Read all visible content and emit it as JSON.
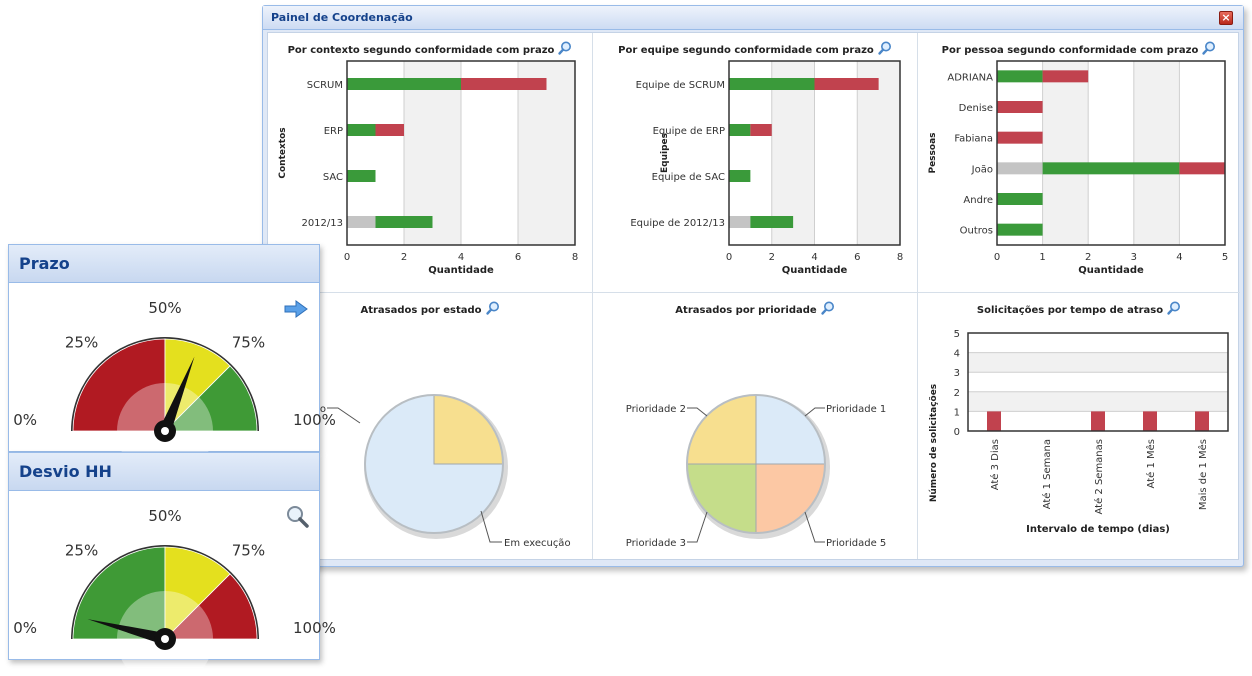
{
  "panel": {
    "title": "Painel de Coordenação",
    "close_label": "×"
  },
  "colors": {
    "green": "#3a9a3a",
    "red": "#c1424e",
    "gray": "#c4c4c4",
    "frame_bg": "#f1f1f1"
  },
  "charts": {
    "contexto": {
      "title": "Por contexto segundo conformidade com prazo",
      "ylabel": "Contextos",
      "xlabel": "Quantidade",
      "xticks": [
        "0",
        "2",
        "4",
        "6",
        "8"
      ],
      "categories": [
        "SCRUM",
        "ERP",
        "SAC",
        "2012/13"
      ]
    },
    "equipe": {
      "title": "Por equipe segundo conformidade com prazo",
      "ylabel": "Equipes",
      "xlabel": "Quantidade",
      "xticks": [
        "0",
        "2",
        "4",
        "6",
        "8"
      ],
      "categories": [
        "Equipe de SCRUM",
        "Equipe de ERP",
        "Equipe de SAC",
        "Equipe de 2012/13"
      ]
    },
    "pessoa": {
      "title": "Por pessoa segundo conformidade com prazo",
      "ylabel": "Pessoas",
      "xlabel": "Quantidade",
      "xticks": [
        "0",
        "1",
        "2",
        "3",
        "4",
        "5"
      ],
      "categories": [
        "ADRIANA",
        "Denise",
        "Fabiana",
        "João",
        "Andre",
        "Outros"
      ]
    },
    "estado": {
      "title": "Atrasados por estado",
      "labels": [
        "Em execução",
        "Em execução"
      ]
    },
    "prioridade": {
      "title": "Atrasados por prioridade",
      "labels": [
        "Prioridade 1",
        "Prioridade 2",
        "Prioridade 3",
        "Prioridade 5"
      ]
    },
    "tempo": {
      "title": "Solicitações por tempo de atraso",
      "ylabel": "Número de solicitações",
      "xlabel": "Intervalo de tempo (dias)",
      "yticks": [
        "0",
        "1",
        "2",
        "3",
        "4",
        "5"
      ],
      "categories": [
        "Até 3 Dias",
        "Até 1 Semana",
        "Até 2 Semanas",
        "Até 1 Mês",
        "Mais de 1 Mês"
      ]
    }
  },
  "chart_data": [
    {
      "type": "bar",
      "title": "Por contexto segundo conformidade com prazo",
      "xlabel": "Quantidade",
      "ylabel": "Contextos",
      "orientation": "horizontal",
      "stacked": true,
      "categories": [
        "SCRUM",
        "ERP",
        "SAC",
        "2012/13"
      ],
      "series": [
        {
          "values": [
            0,
            0,
            0,
            1
          ],
          "color": "#c4c4c4"
        },
        {
          "values": [
            4,
            1,
            1,
            2
          ],
          "color": "#3a9a3a"
        },
        {
          "values": [
            3,
            1,
            0,
            0
          ],
          "color": "#c1424e"
        }
      ],
      "xlim": [
        0,
        8
      ]
    },
    {
      "type": "bar",
      "title": "Por equipe segundo conformidade com prazo",
      "xlabel": "Quantidade",
      "ylabel": "Equipes",
      "orientation": "horizontal",
      "stacked": true,
      "categories": [
        "Equipe de SCRUM",
        "Equipe de ERP",
        "Equipe de SAC",
        "Equipe de 2012/13"
      ],
      "series": [
        {
          "values": [
            0,
            0,
            0,
            1
          ],
          "color": "#c4c4c4"
        },
        {
          "values": [
            4,
            1,
            1,
            2
          ],
          "color": "#3a9a3a"
        },
        {
          "values": [
            3,
            1,
            0,
            0
          ],
          "color": "#c1424e"
        }
      ],
      "xlim": [
        0,
        8
      ]
    },
    {
      "type": "bar",
      "title": "Por pessoa segundo conformidade com prazo",
      "xlabel": "Quantidade",
      "ylabel": "Pessoas",
      "orientation": "horizontal",
      "stacked": true,
      "categories": [
        "ADRIANA",
        "Denise",
        "Fabiana",
        "João",
        "Andre",
        "Outros"
      ],
      "series": [
        {
          "values": [
            0,
            0,
            0,
            1,
            0,
            0
          ],
          "color": "#c4c4c4"
        },
        {
          "values": [
            1,
            0,
            0,
            3,
            1,
            1
          ],
          "color": "#3a9a3a"
        },
        {
          "values": [
            1,
            1,
            1,
            1,
            0,
            0
          ],
          "color": "#c1424e"
        }
      ],
      "xlim": [
        0,
        5
      ]
    },
    {
      "type": "pie",
      "title": "Atrasados por estado",
      "labels": [
        "Em execução",
        "Em execução"
      ],
      "values": [
        3,
        1
      ],
      "colors": [
        "#dbeaf8",
        "#f7df8f"
      ]
    },
    {
      "type": "pie",
      "title": "Atrasados por prioridade",
      "labels": [
        "Prioridade 1",
        "Prioridade 5",
        "Prioridade 3",
        "Prioridade 2"
      ],
      "values": [
        1,
        1,
        1,
        1
      ],
      "colors": [
        "#dbeaf8",
        "#fcc8a4",
        "#c5dd8a",
        "#f7df8f"
      ]
    },
    {
      "type": "bar",
      "title": "Solicitações por tempo de atraso",
      "xlabel": "Intervalo de tempo (dias)",
      "ylabel": "Número de solicitações",
      "categories": [
        "Até 3 Dias",
        "Até 1 Semana",
        "Até 2 Semanas",
        "Até 1 Mês",
        "Mais de 1 Mês"
      ],
      "values": [
        1,
        0,
        1,
        1,
        1
      ],
      "ylim": [
        0,
        5
      ]
    }
  ],
  "gauges": [
    {
      "key": "prazo",
      "title": "Prazo",
      "labels": [
        "0%",
        "25%",
        "50%",
        "75%",
        "100%"
      ],
      "value_pct": 62,
      "action_icon": "arrow-right-icon",
      "zones": [
        {
          "from": 0,
          "to": 50,
          "color": "#b11a22"
        },
        {
          "from": 50,
          "to": 75,
          "color": "#e4e01e"
        },
        {
          "from": 75,
          "to": 100,
          "color": "#3f9a36"
        }
      ]
    },
    {
      "key": "desvio",
      "title": "Desvio HH",
      "labels": [
        "0%",
        "25%",
        "50%",
        "75%",
        "100%"
      ],
      "value_pct": 8,
      "action_icon": "magnifier-icon",
      "zones": [
        {
          "from": 0,
          "to": 50,
          "color": "#3f9a36"
        },
        {
          "from": 50,
          "to": 75,
          "color": "#e4e01e"
        },
        {
          "from": 75,
          "to": 100,
          "color": "#b11a22"
        }
      ]
    }
  ]
}
